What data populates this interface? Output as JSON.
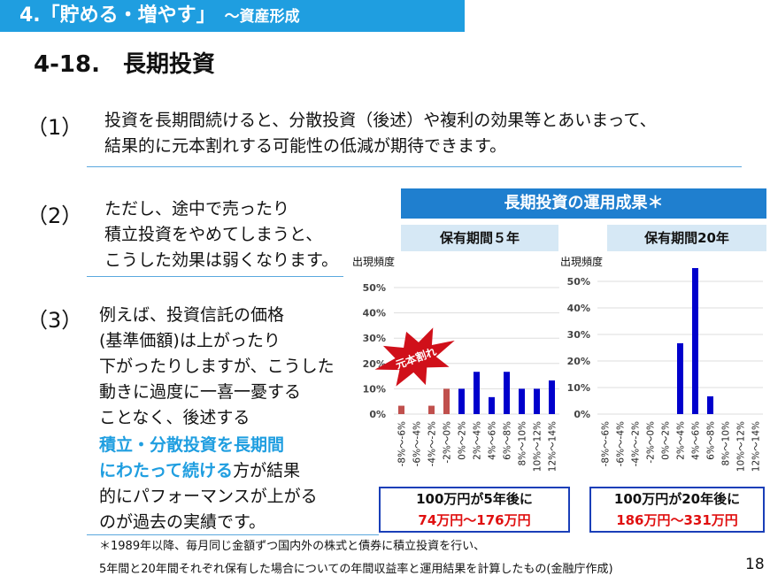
{
  "header": {
    "section": "4.「貯める・増やす」",
    "subtitle": "～資産形成"
  },
  "title": "4-18.　長期投資",
  "points": [
    {
      "num": "（1）",
      "lines": [
        "投資を長期間続けると、分散投資（後述）や複利の効果等とあいまって、",
        "結果的に元本割れする可能性の低減が期待できます。"
      ]
    },
    {
      "num": "（2）",
      "lines": [
        "ただし、途中で売ったり",
        "積立投資をやめてしまうと、",
        "こうした効果は弱くなります。"
      ]
    },
    {
      "num": "（3）",
      "lines": [
        "例えば、投資信託の価格",
        "(基準価額)は上がったり",
        "下がったりしますが、こうした",
        "動きに過度に一喜一憂する",
        "ことなく、後述する"
      ],
      "hl1": "積立・分散投資を長期間",
      "hl2": "にわたって続ける",
      "rest1": "方が結果",
      "rest2": "的にパフォーマンスが上がる",
      "rest3": "のが過去の実績です。"
    }
  ],
  "chart_header": "長期投資の運用成果＊",
  "burst_label": "元本割れ",
  "colors": {
    "loss": "#c0504d",
    "gain": "#0000cc",
    "accent": "#1f9ee0"
  },
  "chart_data": [
    {
      "type": "bar",
      "title": "保有期間５年",
      "ylabel": "出現頻度",
      "ylim": [
        0,
        50
      ],
      "yticks": [
        "0%",
        "10%",
        "20%",
        "30%",
        "40%",
        "50%"
      ],
      "categories": [
        "-8%～-6%",
        "-6%～-4%",
        "-4%～-2%",
        "-2%～0%",
        "0%～2%",
        "2%～4%",
        "4%～6%",
        "6%～8%",
        "8%～10%",
        "10%～12%",
        "12%～14%"
      ],
      "values": [
        3.3,
        0,
        3.3,
        10,
        10,
        16.7,
        6.7,
        16.7,
        10,
        10,
        13.3
      ],
      "result_label": "100万円が5年後に",
      "result_range": "74万円～176万円"
    },
    {
      "type": "bar",
      "title": "保有期間20年",
      "ylabel": "出現頻度",
      "ylim": [
        0,
        50
      ],
      "yticks": [
        "0%",
        "10%",
        "20%",
        "30%",
        "40%",
        "50%"
      ],
      "categories": [
        "-8%～-6%",
        "-6%～-4%",
        "-4%～-2%",
        "-2%～0%",
        "0%～2%",
        "2%～4%",
        "4%～6%",
        "6%～8%",
        "8%～10%",
        "10%～12%",
        "12%～14%"
      ],
      "values": [
        0,
        0,
        0,
        0,
        0,
        26.7,
        55,
        6.7,
        0,
        0,
        0
      ],
      "result_label": "100万円が20年後に",
      "result_range": "186万円～331万円"
    }
  ],
  "footnote1": "＊1989年以降、毎月同じ金額ずつ国内外の株式と債券に積立投資を行い、",
  "footnote2": "5年間と20年間それぞれ保有した場合についての年間収益率と運用結果を計算したもの(金融庁作成)",
  "page_number": "18"
}
